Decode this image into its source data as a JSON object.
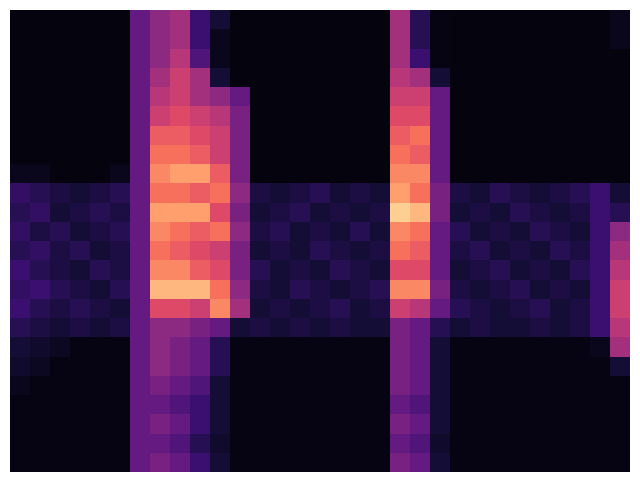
{
  "chart_data": {
    "type": "heatmap",
    "color": "magma",
    "tick_labels": false,
    "grid": false,
    "zlim": [
      0,
      1
    ],
    "cells": [
      [
        0.02,
        0.02,
        0.02,
        0.02,
        0.02,
        0.02,
        0.3,
        0.4,
        0.45,
        0.2,
        0.1,
        0.02,
        0.02,
        0.02,
        0.02,
        0.02,
        0.02,
        0.02,
        0.02,
        0.45,
        0.15,
        0.03,
        0.02,
        0.02,
        0.02,
        0.02,
        0.02,
        0.02,
        0.02,
        0.02,
        0.05
      ],
      [
        0.02,
        0.02,
        0.02,
        0.02,
        0.02,
        0.02,
        0.3,
        0.4,
        0.45,
        0.2,
        0.05,
        0.02,
        0.02,
        0.02,
        0.02,
        0.02,
        0.02,
        0.02,
        0.02,
        0.45,
        0.15,
        0.03,
        0.02,
        0.02,
        0.02,
        0.02,
        0.02,
        0.02,
        0.02,
        0.02,
        0.05
      ],
      [
        0.02,
        0.02,
        0.02,
        0.02,
        0.02,
        0.02,
        0.3,
        0.4,
        0.5,
        0.25,
        0.05,
        0.02,
        0.02,
        0.02,
        0.02,
        0.02,
        0.02,
        0.02,
        0.02,
        0.45,
        0.2,
        0.03,
        0.02,
        0.02,
        0.02,
        0.02,
        0.02,
        0.02,
        0.02,
        0.02,
        0.02
      ],
      [
        0.02,
        0.02,
        0.02,
        0.02,
        0.02,
        0.02,
        0.3,
        0.45,
        0.55,
        0.45,
        0.1,
        0.02,
        0.02,
        0.02,
        0.02,
        0.02,
        0.02,
        0.02,
        0.02,
        0.5,
        0.45,
        0.1,
        0.02,
        0.02,
        0.02,
        0.02,
        0.02,
        0.02,
        0.02,
        0.02,
        0.02
      ],
      [
        0.02,
        0.02,
        0.02,
        0.02,
        0.02,
        0.02,
        0.3,
        0.5,
        0.55,
        0.45,
        0.4,
        0.3,
        0.02,
        0.02,
        0.02,
        0.02,
        0.02,
        0.02,
        0.02,
        0.55,
        0.55,
        0.3,
        0.02,
        0.02,
        0.02,
        0.02,
        0.02,
        0.02,
        0.02,
        0.02,
        0.02
      ],
      [
        0.02,
        0.02,
        0.02,
        0.02,
        0.02,
        0.02,
        0.3,
        0.55,
        0.6,
        0.55,
        0.5,
        0.35,
        0.02,
        0.02,
        0.02,
        0.02,
        0.02,
        0.02,
        0.02,
        0.6,
        0.6,
        0.3,
        0.02,
        0.02,
        0.02,
        0.02,
        0.02,
        0.02,
        0.02,
        0.02,
        0.02
      ],
      [
        0.02,
        0.02,
        0.02,
        0.02,
        0.02,
        0.02,
        0.3,
        0.65,
        0.65,
        0.6,
        0.55,
        0.35,
        0.02,
        0.02,
        0.02,
        0.02,
        0.02,
        0.02,
        0.02,
        0.65,
        0.7,
        0.3,
        0.02,
        0.02,
        0.02,
        0.02,
        0.02,
        0.02,
        0.02,
        0.02,
        0.02
      ],
      [
        0.02,
        0.02,
        0.02,
        0.02,
        0.02,
        0.02,
        0.3,
        0.7,
        0.7,
        0.65,
        0.55,
        0.35,
        0.02,
        0.02,
        0.02,
        0.02,
        0.02,
        0.02,
        0.02,
        0.7,
        0.65,
        0.3,
        0.02,
        0.02,
        0.02,
        0.02,
        0.02,
        0.02,
        0.02,
        0.02,
        0.02
      ],
      [
        0.05,
        0.05,
        0.02,
        0.02,
        0.02,
        0.05,
        0.3,
        0.75,
        0.8,
        0.8,
        0.65,
        0.35,
        0.02,
        0.02,
        0.02,
        0.02,
        0.02,
        0.02,
        0.02,
        0.75,
        0.75,
        0.3,
        0.02,
        0.02,
        0.02,
        0.02,
        0.02,
        0.02,
        0.02,
        0.02,
        0.02
      ],
      [
        0.18,
        0.15,
        0.12,
        0.1,
        0.12,
        0.15,
        0.3,
        0.7,
        0.7,
        0.65,
        0.7,
        0.4,
        0.12,
        0.1,
        0.12,
        0.15,
        0.1,
        0.12,
        0.1,
        0.8,
        0.7,
        0.35,
        0.12,
        0.1,
        0.15,
        0.12,
        0.1,
        0.12,
        0.15,
        0.2,
        0.1
      ],
      [
        0.15,
        0.18,
        0.1,
        0.12,
        0.15,
        0.12,
        0.3,
        0.8,
        0.8,
        0.8,
        0.6,
        0.35,
        0.1,
        0.12,
        0.15,
        0.1,
        0.12,
        0.1,
        0.12,
        0.9,
        0.85,
        0.35,
        0.1,
        0.12,
        0.1,
        0.15,
        0.12,
        0.1,
        0.12,
        0.2,
        0.15
      ],
      [
        0.18,
        0.12,
        0.15,
        0.1,
        0.12,
        0.15,
        0.3,
        0.75,
        0.7,
        0.65,
        0.7,
        0.4,
        0.12,
        0.15,
        0.1,
        0.12,
        0.1,
        0.15,
        0.1,
        0.75,
        0.7,
        0.3,
        0.15,
        0.1,
        0.12,
        0.1,
        0.15,
        0.12,
        0.1,
        0.2,
        0.4
      ],
      [
        0.15,
        0.18,
        0.12,
        0.15,
        0.1,
        0.12,
        0.3,
        0.7,
        0.65,
        0.6,
        0.55,
        0.35,
        0.1,
        0.12,
        0.1,
        0.15,
        0.12,
        0.1,
        0.12,
        0.7,
        0.65,
        0.3,
        0.12,
        0.15,
        0.1,
        0.12,
        0.1,
        0.15,
        0.12,
        0.2,
        0.45
      ],
      [
        0.2,
        0.15,
        0.12,
        0.1,
        0.15,
        0.12,
        0.3,
        0.75,
        0.75,
        0.65,
        0.6,
        0.35,
        0.15,
        0.1,
        0.12,
        0.1,
        0.15,
        0.12,
        0.1,
        0.6,
        0.6,
        0.3,
        0.1,
        0.12,
        0.15,
        0.1,
        0.12,
        0.1,
        0.15,
        0.2,
        0.5
      ],
      [
        0.18,
        0.2,
        0.15,
        0.12,
        0.1,
        0.15,
        0.3,
        0.85,
        0.85,
        0.85,
        0.7,
        0.4,
        0.12,
        0.1,
        0.15,
        0.12,
        0.1,
        0.12,
        0.15,
        0.75,
        0.75,
        0.35,
        0.12,
        0.1,
        0.12,
        0.15,
        0.1,
        0.12,
        0.1,
        0.2,
        0.55
      ],
      [
        0.2,
        0.15,
        0.12,
        0.15,
        0.12,
        0.1,
        0.3,
        0.6,
        0.6,
        0.55,
        0.75,
        0.45,
        0.1,
        0.12,
        0.1,
        0.12,
        0.15,
        0.1,
        0.12,
        0.55,
        0.5,
        0.3,
        0.15,
        0.12,
        0.1,
        0.12,
        0.15,
        0.1,
        0.12,
        0.2,
        0.55
      ],
      [
        0.15,
        0.12,
        0.1,
        0.12,
        0.1,
        0.12,
        0.3,
        0.4,
        0.4,
        0.35,
        0.3,
        0.1,
        0.12,
        0.1,
        0.12,
        0.1,
        0.12,
        0.1,
        0.1,
        0.35,
        0.3,
        0.15,
        0.1,
        0.12,
        0.1,
        0.1,
        0.12,
        0.1,
        0.12,
        0.2,
        0.5
      ],
      [
        0.1,
        0.08,
        0.06,
        0.03,
        0.03,
        0.03,
        0.3,
        0.4,
        0.35,
        0.3,
        0.15,
        0.03,
        0.03,
        0.03,
        0.03,
        0.03,
        0.03,
        0.03,
        0.03,
        0.35,
        0.3,
        0.1,
        0.03,
        0.03,
        0.03,
        0.03,
        0.03,
        0.03,
        0.03,
        0.05,
        0.45
      ],
      [
        0.08,
        0.06,
        0.03,
        0.03,
        0.03,
        0.03,
        0.3,
        0.4,
        0.35,
        0.3,
        0.15,
        0.03,
        0.03,
        0.03,
        0.03,
        0.03,
        0.03,
        0.03,
        0.03,
        0.35,
        0.3,
        0.1,
        0.03,
        0.03,
        0.03,
        0.03,
        0.03,
        0.03,
        0.03,
        0.03,
        0.1
      ],
      [
        0.05,
        0.03,
        0.03,
        0.03,
        0.03,
        0.03,
        0.3,
        0.35,
        0.3,
        0.25,
        0.1,
        0.03,
        0.03,
        0.03,
        0.03,
        0.03,
        0.03,
        0.03,
        0.03,
        0.35,
        0.3,
        0.1,
        0.03,
        0.03,
        0.03,
        0.03,
        0.03,
        0.03,
        0.03,
        0.03,
        0.03
      ],
      [
        0.03,
        0.03,
        0.03,
        0.03,
        0.03,
        0.03,
        0.3,
        0.3,
        0.25,
        0.2,
        0.1,
        0.03,
        0.03,
        0.03,
        0.03,
        0.03,
        0.03,
        0.03,
        0.03,
        0.3,
        0.25,
        0.1,
        0.03,
        0.03,
        0.03,
        0.03,
        0.03,
        0.03,
        0.03,
        0.03,
        0.03
      ],
      [
        0.03,
        0.03,
        0.03,
        0.03,
        0.03,
        0.03,
        0.3,
        0.35,
        0.3,
        0.2,
        0.1,
        0.03,
        0.03,
        0.03,
        0.03,
        0.03,
        0.03,
        0.03,
        0.03,
        0.35,
        0.3,
        0.1,
        0.03,
        0.03,
        0.03,
        0.03,
        0.03,
        0.03,
        0.03,
        0.03,
        0.03
      ],
      [
        0.03,
        0.03,
        0.03,
        0.03,
        0.03,
        0.03,
        0.3,
        0.3,
        0.25,
        0.15,
        0.08,
        0.03,
        0.03,
        0.03,
        0.03,
        0.03,
        0.03,
        0.03,
        0.03,
        0.3,
        0.25,
        0.08,
        0.03,
        0.03,
        0.03,
        0.03,
        0.03,
        0.03,
        0.03,
        0.03,
        0.03
      ],
      [
        0.03,
        0.03,
        0.03,
        0.03,
        0.03,
        0.03,
        0.3,
        0.35,
        0.3,
        0.2,
        0.1,
        0.03,
        0.03,
        0.03,
        0.03,
        0.03,
        0.03,
        0.03,
        0.03,
        0.35,
        0.3,
        0.1,
        0.03,
        0.03,
        0.03,
        0.03,
        0.03,
        0.03,
        0.03,
        0.03,
        0.03
      ]
    ]
  }
}
